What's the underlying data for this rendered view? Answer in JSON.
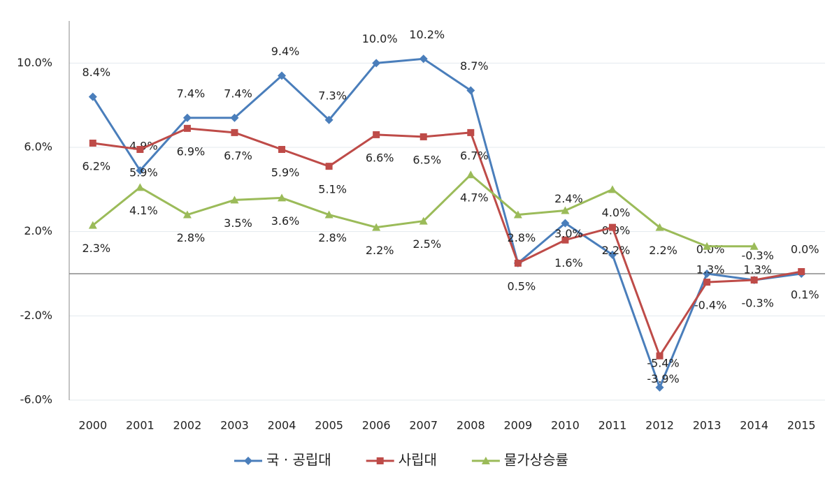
{
  "chart_data": {
    "type": "line",
    "categories": [
      "2000",
      "2001",
      "2002",
      "2003",
      "2004",
      "2005",
      "2006",
      "2007",
      "2008",
      "2009",
      "2010",
      "2011",
      "2012",
      "2013",
      "2014",
      "2015"
    ],
    "series": [
      {
        "name": "국 · 공립대",
        "color": "#4a7ebb",
        "marker": "diamond",
        "values": [
          8.4,
          4.9,
          7.4,
          7.4,
          9.4,
          7.3,
          10.0,
          10.2,
          8.7,
          0.5,
          2.4,
          0.9,
          -5.4,
          0.0,
          -0.3,
          0.0
        ],
        "value_labels": [
          "8.4%",
          "4.9%",
          "7.4%",
          "7.4%",
          "9.4%",
          "7.3%",
          "10.0%",
          "10.2%",
          "8.7%",
          null,
          "2.4%",
          "0.9%",
          "-5.4%",
          "0.0%",
          "-0.3%",
          "0.0%"
        ]
      },
      {
        "name": "사립대",
        "color": "#be4b48",
        "marker": "square",
        "values": [
          6.2,
          5.9,
          6.9,
          6.7,
          5.9,
          5.1,
          6.6,
          6.5,
          6.7,
          0.5,
          1.6,
          2.2,
          -3.9,
          -0.4,
          -0.3,
          0.1
        ],
        "value_labels": [
          "6.2%",
          "5.9%",
          "6.9%",
          "6.7%",
          "5.9%",
          "5.1%",
          "6.6%",
          "6.5%",
          "6.7%",
          "0.5%",
          "1.6%",
          "2.2%",
          "-3.9%",
          "-0.4%",
          "-0.3%",
          "0.1%"
        ]
      },
      {
        "name": "물가상승률",
        "color": "#9bbb59",
        "marker": "triangle",
        "values": [
          2.3,
          4.1,
          2.8,
          3.5,
          3.6,
          2.8,
          2.2,
          2.5,
          4.7,
          2.8,
          3.0,
          4.0,
          2.2,
          1.3,
          1.3,
          null
        ],
        "value_labels": [
          "2.3%",
          "4.1%",
          "2.8%",
          "3.5%",
          "3.6%",
          "2.8%",
          "2.2%",
          "2.5%",
          "4.7%",
          "2.8%",
          "3.0%",
          "4.0%",
          "2.2%",
          "1.3%",
          "1.3%",
          null
        ]
      }
    ],
    "ylim": [
      -6,
      12
    ],
    "yticks": [
      {
        "value": -6,
        "label": "-6.0%"
      },
      {
        "value": -2,
        "label": "-2.0%"
      },
      {
        "value": 2,
        "label": "2.0%"
      },
      {
        "value": 6,
        "label": "6.0%"
      },
      {
        "value": 10,
        "label": "10.0%"
      }
    ],
    "grid": true,
    "legend": "bottom"
  }
}
